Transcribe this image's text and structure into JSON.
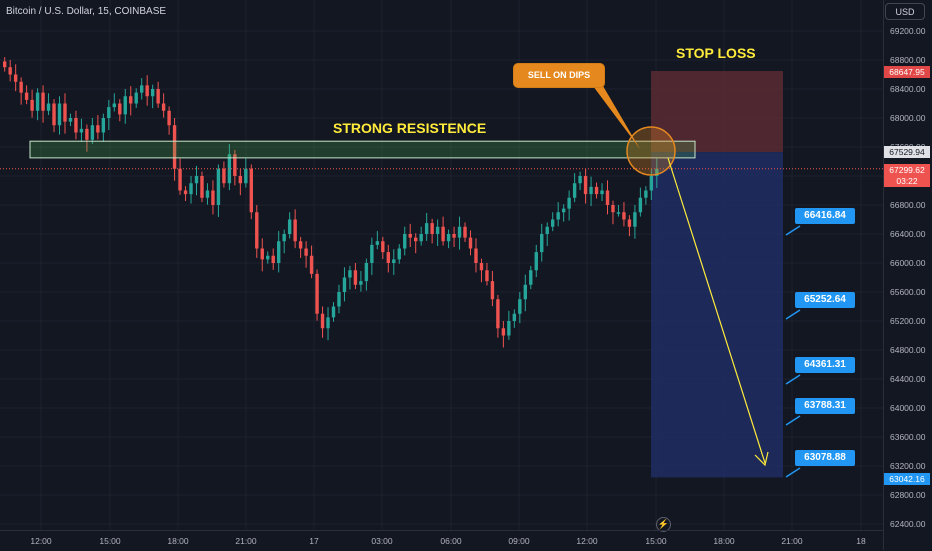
{
  "header": {
    "title": "Bitcoin / U.S. Dollar, 15, COINBASE",
    "currency_button": "USD"
  },
  "price_axis": {
    "ticks": [
      "69200.00",
      "68800.00",
      "68400.00",
      "68000.00",
      "67600.00",
      "66800.00",
      "66400.00",
      "66000.00",
      "65600.00",
      "65200.00",
      "64800.00",
      "64400.00",
      "64000.00",
      "63600.00",
      "63200.00",
      "62800.00",
      "62400.00"
    ],
    "stop_tag": "68647.95",
    "resistance_tag": "67529.94",
    "current_tag": "67299.62",
    "countdown": "03:22",
    "target_tag": "63042.16"
  },
  "time_axis": {
    "ticks": [
      "12:00",
      "15:00",
      "18:00",
      "21:00",
      "17",
      "03:00",
      "06:00",
      "09:00",
      "12:00",
      "15:00",
      "18:00",
      "21:00",
      "18"
    ]
  },
  "annotations": {
    "stop_loss": "STOP LOSS",
    "strong_resistance": "STRONG RESISTENCE",
    "sell_on_dips": "SELL ON DIPS"
  },
  "targets": [
    "66416.84",
    "65252.64",
    "64361.31",
    "63788.31",
    "63078.88"
  ],
  "colors": {
    "background": "#131722",
    "up": "#26a69a",
    "down": "#ef5350",
    "target": "#2196f3",
    "stop_zone": "#5b2a33",
    "profit_zone": "#1e2d63",
    "annotation": "#ffeb3b",
    "sell_label": "#e5891f"
  },
  "chart_data": {
    "type": "candlestick",
    "symbol": "BTC/USD",
    "timeframe": "15",
    "y_range": [
      62200,
      69500
    ],
    "resistance_zone": [
      67450,
      67680
    ],
    "entry": 67529.94,
    "stop_loss": 68647.95,
    "take_profit": 63042.16,
    "targets": [
      66416.84,
      65252.64,
      64361.31,
      63788.31,
      63078.88
    ],
    "close_series": [
      68700,
      68600,
      68500,
      68350,
      68250,
      68100,
      68350,
      68100,
      68200,
      67900,
      68200,
      67950,
      68000,
      67800,
      67850,
      67700,
      67900,
      67800,
      68000,
      68150,
      68200,
      68050,
      68300,
      68200,
      68350,
      68450,
      68300,
      68400,
      68200,
      68100,
      67900,
      67300,
      67000,
      66950,
      67100,
      67200,
      66900,
      67000,
      66800,
      67300,
      67100,
      67500,
      67200,
      67100,
      67300,
      66700,
      66200,
      66050,
      66100,
      66000,
      66300,
      66400,
      66600,
      66300,
      66200,
      66100,
      65850,
      65300,
      65100,
      65250,
      65400,
      65600,
      65800,
      65900,
      65700,
      65750,
      66000,
      66250,
      66300,
      66150,
      66000,
      66050,
      66200,
      66400,
      66350,
      66300,
      66400,
      66550,
      66400,
      66500,
      66300,
      66400,
      66350,
      66500,
      66350,
      66200,
      66000,
      65900,
      65750,
      65500,
      65100,
      65000,
      65200,
      65300,
      65500,
      65700,
      65900,
      66150,
      66400,
      66500,
      66600,
      66700,
      66750,
      66900,
      67100,
      67200,
      66950,
      67050,
      66950,
      67000,
      66800,
      66700,
      66700,
      66600,
      66500,
      66700,
      66900,
      67000,
      67200,
      67300
    ]
  }
}
